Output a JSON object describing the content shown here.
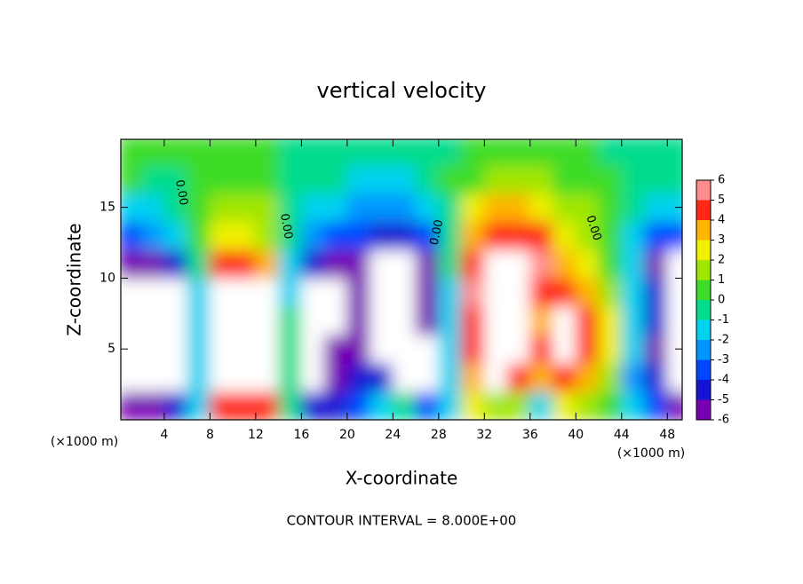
{
  "chart_data": {
    "type": "heatmap",
    "title": "vertical velocity",
    "xlabel": "X-coordinate",
    "ylabel": "Z-coordinate",
    "x_unit_label": "(×1000 m)",
    "footer": "CONTOUR INTERVAL = 8.000E+00",
    "annotations": [
      "0.00",
      "0.00",
      "0.00",
      "0.00"
    ],
    "x": [
      1,
      3,
      5,
      7,
      9,
      11,
      13,
      15,
      17,
      19,
      21,
      23,
      25,
      27,
      29,
      31,
      33,
      35,
      37,
      39,
      41,
      43,
      45,
      47,
      49
    ],
    "y": [
      1,
      3,
      5,
      7,
      9,
      11,
      13,
      15,
      17,
      19
    ],
    "z": [
      [
        -5,
        -5,
        -4,
        -1,
        5,
        5,
        5,
        0,
        -4,
        -4,
        -3,
        -1,
        0,
        -3,
        -1,
        3,
        2,
        2,
        -1,
        3,
        2,
        1,
        -1,
        -3,
        -5
      ],
      [
        -8,
        -8,
        -8,
        -1,
        9,
        9,
        9,
        0,
        -8,
        -5,
        -4,
        -4,
        -8,
        -8,
        -1,
        4,
        9,
        5,
        4,
        5,
        4,
        2,
        -2,
        -4,
        -8
      ],
      [
        -8,
        -8,
        -8,
        -1,
        9,
        9,
        9,
        0,
        -8,
        -6,
        -5,
        -8,
        -8,
        -8,
        -1,
        5,
        9,
        9,
        5,
        9,
        5,
        3,
        -1,
        -5,
        -8
      ],
      [
        -8,
        -8,
        -8,
        -1,
        9,
        9,
        9,
        0,
        -8,
        -8,
        -6,
        -8,
        -8,
        -5,
        -1,
        5,
        9,
        9,
        4,
        9,
        5,
        3,
        -1,
        -4,
        -8
      ],
      [
        -8,
        -8,
        -8,
        -1,
        9,
        9,
        9,
        -1,
        -8,
        -8,
        -6,
        -8,
        -8,
        -6,
        -1,
        6,
        9,
        9,
        5,
        5,
        4,
        2,
        -1,
        -4,
        -8
      ],
      [
        -5,
        -5,
        -4,
        0,
        5,
        5,
        4,
        -1,
        -4,
        -5,
        -5,
        -8,
        -8,
        -5,
        0,
        5,
        9,
        9,
        6,
        4,
        3,
        1,
        -1,
        -5,
        -8
      ],
      [
        -3,
        -2,
        -1,
        1,
        3,
        3,
        2,
        0,
        -2,
        -3,
        -3,
        -4,
        -4,
        -3,
        0,
        4,
        5,
        5,
        5,
        3,
        2,
        1,
        -1,
        -3,
        -3
      ],
      [
        -1,
        -1,
        -0.5,
        0.5,
        2,
        2,
        1.5,
        0,
        -1,
        -1.5,
        -2,
        -2,
        -2,
        -1,
        0,
        3,
        4,
        4,
        3,
        2,
        1.5,
        0.5,
        -0.5,
        -1,
        -1
      ],
      [
        0.3,
        0,
        0,
        0.5,
        1,
        1,
        1,
        0,
        -0.5,
        -0.5,
        -1,
        -1,
        -1,
        -0.5,
        0.5,
        1,
        2,
        2,
        1.5,
        1,
        1,
        0.5,
        0,
        -0.5,
        0
      ],
      [
        0.5,
        0.5,
        0.5,
        0.5,
        0.5,
        0.5,
        0.5,
        0,
        0,
        0,
        -0.5,
        -0.5,
        -0.5,
        0,
        0,
        0.5,
        1,
        1,
        1,
        0.5,
        0.5,
        0,
        0,
        0,
        0
      ]
    ],
    "xlim": [
      0.2,
      49.3
    ],
    "ylim": [
      0,
      19.8
    ],
    "xticks": [
      4,
      8,
      12,
      16,
      20,
      24,
      28,
      32,
      36,
      40,
      44,
      48
    ],
    "yticks": [
      5,
      10,
      15
    ],
    "colorbar": {
      "levels": [
        -6,
        -5,
        -4,
        -3,
        -2,
        -1,
        0,
        1,
        2,
        3,
        4,
        5,
        6
      ],
      "colors": [
        "#7800b4",
        "#1414d2",
        "#0046ff",
        "#0096ff",
        "#00d2f0",
        "#00dc8c",
        "#3cdc28",
        "#a0e600",
        "#f0f000",
        "#ffb400",
        "#ff2814",
        "#ff8c8c"
      ],
      "ticks": [
        -6,
        -5,
        -4,
        -3,
        -2,
        -1,
        0,
        1,
        2,
        3,
        4,
        5,
        6
      ],
      "out_of_range_color": "#ffffff"
    }
  }
}
